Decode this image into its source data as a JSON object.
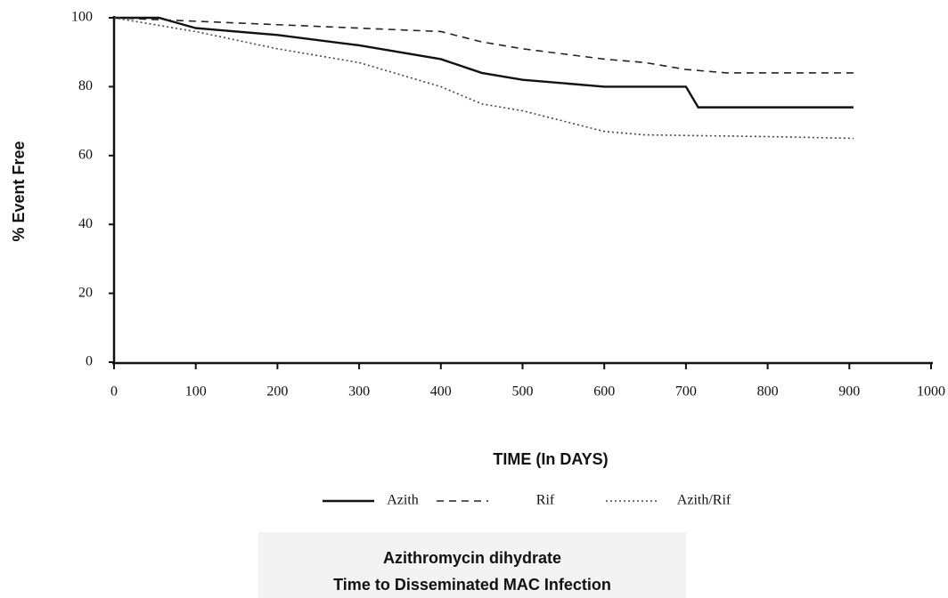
{
  "chart_data": {
    "type": "line",
    "title": "Azithromycin dihydrate",
    "subtitle": "Time to Disseminated MAC Infection",
    "x_label": "TIME (In DAYS)",
    "y_label": "% Event Free",
    "xlim": [
      0,
      1000
    ],
    "xticks": [
      0,
      100,
      200,
      300,
      400,
      500,
      600,
      700,
      800,
      900,
      1000
    ],
    "ylim": [
      0,
      100
    ],
    "yticks": [
      0,
      20,
      40,
      60,
      80,
      100
    ],
    "series": [
      {
        "name": "Azith",
        "color": "#111111",
        "dash": "solid",
        "width": 2.4,
        "x": [
          0,
          55,
          100,
          200,
          300,
          400,
          450,
          500,
          600,
          700,
          715,
          905
        ],
        "values": [
          100,
          100,
          97,
          95,
          92,
          88,
          84,
          82,
          80,
          80,
          74,
          74
        ]
      },
      {
        "name": "Rif",
        "color": "#222222",
        "dash": "dashed",
        "width": 1.6,
        "x": [
          0,
          100,
          200,
          300,
          400,
          450,
          500,
          600,
          650,
          700,
          750,
          905
        ],
        "values": [
          100,
          99,
          98,
          97,
          96,
          93,
          91,
          88,
          87,
          85,
          84,
          84
        ]
      },
      {
        "name": "Azith/Rif",
        "color": "#444444",
        "dash": "dotted",
        "width": 1.6,
        "x": [
          0,
          100,
          200,
          300,
          400,
          450,
          500,
          550,
          600,
          650,
          800,
          905
        ],
        "values": [
          100,
          96,
          91,
          87,
          80,
          75,
          73,
          70,
          67,
          66,
          65.5,
          65
        ]
      }
    ]
  }
}
